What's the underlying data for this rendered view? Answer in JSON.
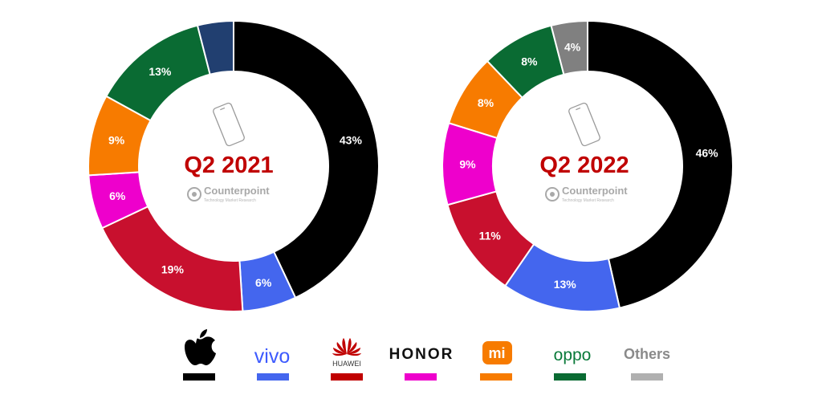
{
  "chart_data": [
    {
      "type": "pie",
      "title": "Q2 2021",
      "series": [
        {
          "brand": "apple",
          "value": 43
        },
        {
          "brand": "vivo",
          "value": 6
        },
        {
          "brand": "huawei",
          "value": 19
        },
        {
          "brand": "honor",
          "value": 6
        },
        {
          "brand": "xiaomi",
          "value": 9
        },
        {
          "brand": "oppo",
          "value": 13
        },
        {
          "brand": "others",
          "value": 4
        }
      ],
      "labels": [
        "43%",
        "6%",
        "19%",
        "6%",
        "9%",
        "13%",
        ""
      ]
    },
    {
      "type": "pie",
      "title": "Q2 2022",
      "series": [
        {
          "brand": "apple",
          "value": 46
        },
        {
          "brand": "vivo",
          "value": 13
        },
        {
          "brand": "huawei",
          "value": 11
        },
        {
          "brand": "honor",
          "value": 9
        },
        {
          "brand": "xiaomi",
          "value": 8
        },
        {
          "brand": "oppo",
          "value": 8
        },
        {
          "brand": "others",
          "value": 4
        }
      ],
      "labels": [
        "46%",
        "13%",
        "11%",
        "9%",
        "8%",
        "8%",
        "4%"
      ]
    }
  ],
  "colors": {
    "chart_2021": [
      "#000000",
      "#4466ee",
      "#c8102e",
      "#ee00cc",
      "#f77b00",
      "#0a6b33",
      "#213f70"
    ],
    "chart_2022": [
      "#000000",
      "#4466ee",
      "#c8102e",
      "#ee00cc",
      "#f77b00",
      "#0a6b33",
      "#808080"
    ],
    "title": "#c00000"
  },
  "watermark": {
    "name": "Counterpoint",
    "tagline": "Technology Market Research"
  },
  "legend": [
    {
      "brand": "apple",
      "label": "",
      "icon": "apple-logo",
      "color": "#000000"
    },
    {
      "brand": "vivo",
      "label": "vivo",
      "color": "#4466ee",
      "text_color": "#3d5afe"
    },
    {
      "brand": "huawei",
      "label": "HUAWEI",
      "icon": "huawei-logo",
      "color": "#c00000",
      "text_color": "#333333"
    },
    {
      "brand": "honor",
      "label": "HONOR",
      "color": "#ee00cc",
      "text_color": "#111111"
    },
    {
      "brand": "xiaomi",
      "label": "mi",
      "icon": "xiaomi-logo",
      "color": "#f77b00",
      "text_color": "#ffffff"
    },
    {
      "brand": "oppo",
      "label": "oppo",
      "color": "#0a6b33",
      "text_color": "#0a7a3a"
    },
    {
      "brand": "others",
      "label": "Others",
      "color": "#b0b0b0",
      "text_color": "#8a8a8a"
    }
  ]
}
